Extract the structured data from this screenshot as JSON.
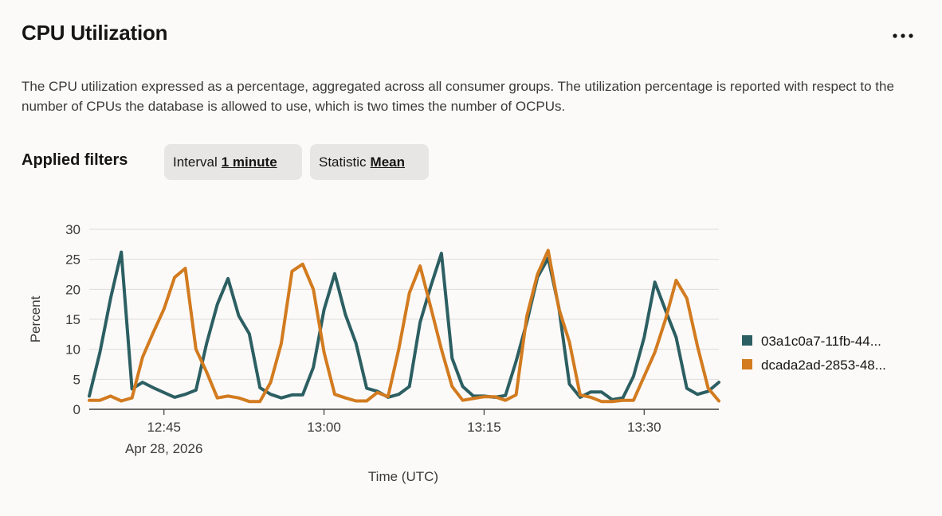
{
  "header": {
    "title": "CPU Utilization",
    "more_icon": "ellipsis-horizontal-icon"
  },
  "description": "The CPU utilization expressed as a percentage, aggregated across all consumer groups. The utilization percentage is reported with respect to the number of CPUs the database is allowed to use, which is two times the number of OCPUs.",
  "filters": {
    "label": "Applied filters",
    "interval": {
      "label": "Interval",
      "value": "1 minute"
    },
    "statistic": {
      "label": "Statistic",
      "value": "Mean"
    }
  },
  "chart_data": {
    "type": "line",
    "title": "",
    "xlabel": "Time (UTC)",
    "ylabel": "Percent",
    "ylim": [
      0,
      30
    ],
    "yticks": [
      0,
      5,
      10,
      15,
      20,
      25,
      30
    ],
    "xlim": [
      "12:38",
      "13:37"
    ],
    "xticks": [
      {
        "t": "12:45",
        "label": "12:45",
        "sublabel": "Apr 28, 2026"
      },
      {
        "t": "13:00",
        "label": "13:00",
        "sublabel": ""
      },
      {
        "t": "13:15",
        "label": "13:15",
        "sublabel": ""
      },
      {
        "t": "13:30",
        "label": "13:30",
        "sublabel": ""
      }
    ],
    "grid": true,
    "legend_position": "right",
    "x": [
      "12:38",
      "12:39",
      "12:40",
      "12:41",
      "12:42",
      "12:43",
      "12:44",
      "12:45",
      "12:46",
      "12:47",
      "12:48",
      "12:49",
      "12:50",
      "12:51",
      "12:52",
      "12:53",
      "12:54",
      "12:55",
      "12:56",
      "12:57",
      "12:58",
      "12:59",
      "13:00",
      "13:01",
      "13:02",
      "13:03",
      "13:04",
      "13:05",
      "13:06",
      "13:07",
      "13:08",
      "13:09",
      "13:10",
      "13:11",
      "13:12",
      "13:13",
      "13:14",
      "13:15",
      "13:16",
      "13:17",
      "13:18",
      "13:19",
      "13:20",
      "13:21",
      "13:22",
      "13:23",
      "13:24",
      "13:25",
      "13:26",
      "13:27",
      "13:28",
      "13:29",
      "13:30",
      "13:31",
      "13:32",
      "13:33",
      "13:34",
      "13:35",
      "13:36",
      "13:37"
    ],
    "series": [
      {
        "name": "03a1c0a7-11fb-44...",
        "color": "#2c5f62",
        "values": [
          2.2,
          9.5,
          18.5,
          26.2,
          3.4,
          4.5,
          3.6,
          2.8,
          2.0,
          2.5,
          3.2,
          11.0,
          17.5,
          21.8,
          15.6,
          12.6,
          3.6,
          2.5,
          1.9,
          2.4,
          2.4,
          7.0,
          16.6,
          22.6,
          15.8,
          11.0,
          3.5,
          3.0,
          2.0,
          2.5,
          3.8,
          14.5,
          20.5,
          26.0,
          8.5,
          3.8,
          2.2,
          2.2,
          2.0,
          2.3,
          8.0,
          14.5,
          22.0,
          25.2,
          17.0,
          4.2,
          2.0,
          2.9,
          2.9,
          1.6,
          1.9,
          5.5,
          12.0,
          21.2,
          16.5,
          12.0,
          3.5,
          2.5,
          3.0,
          4.5
        ]
      },
      {
        "name": "dcada2ad-2853-48...",
        "color": "#d27b1f",
        "values": [
          1.5,
          1.5,
          2.2,
          1.4,
          1.9,
          8.7,
          12.8,
          16.7,
          22.0,
          23.5,
          10.0,
          6.2,
          1.9,
          2.2,
          1.9,
          1.3,
          1.3,
          4.5,
          11.0,
          23.0,
          24.2,
          20.0,
          9.5,
          2.5,
          1.9,
          1.4,
          1.4,
          2.8,
          2.1,
          10.0,
          19.4,
          23.9,
          17.0,
          10.0,
          3.8,
          1.5,
          1.8,
          2.1,
          2.1,
          1.5,
          2.4,
          15.5,
          22.5,
          26.5,
          16.8,
          11.2,
          2.4,
          2.0,
          1.3,
          1.3,
          1.5,
          1.5,
          5.5,
          9.5,
          15.0,
          21.5,
          18.5,
          10.5,
          3.5,
          1.4
        ]
      }
    ]
  }
}
